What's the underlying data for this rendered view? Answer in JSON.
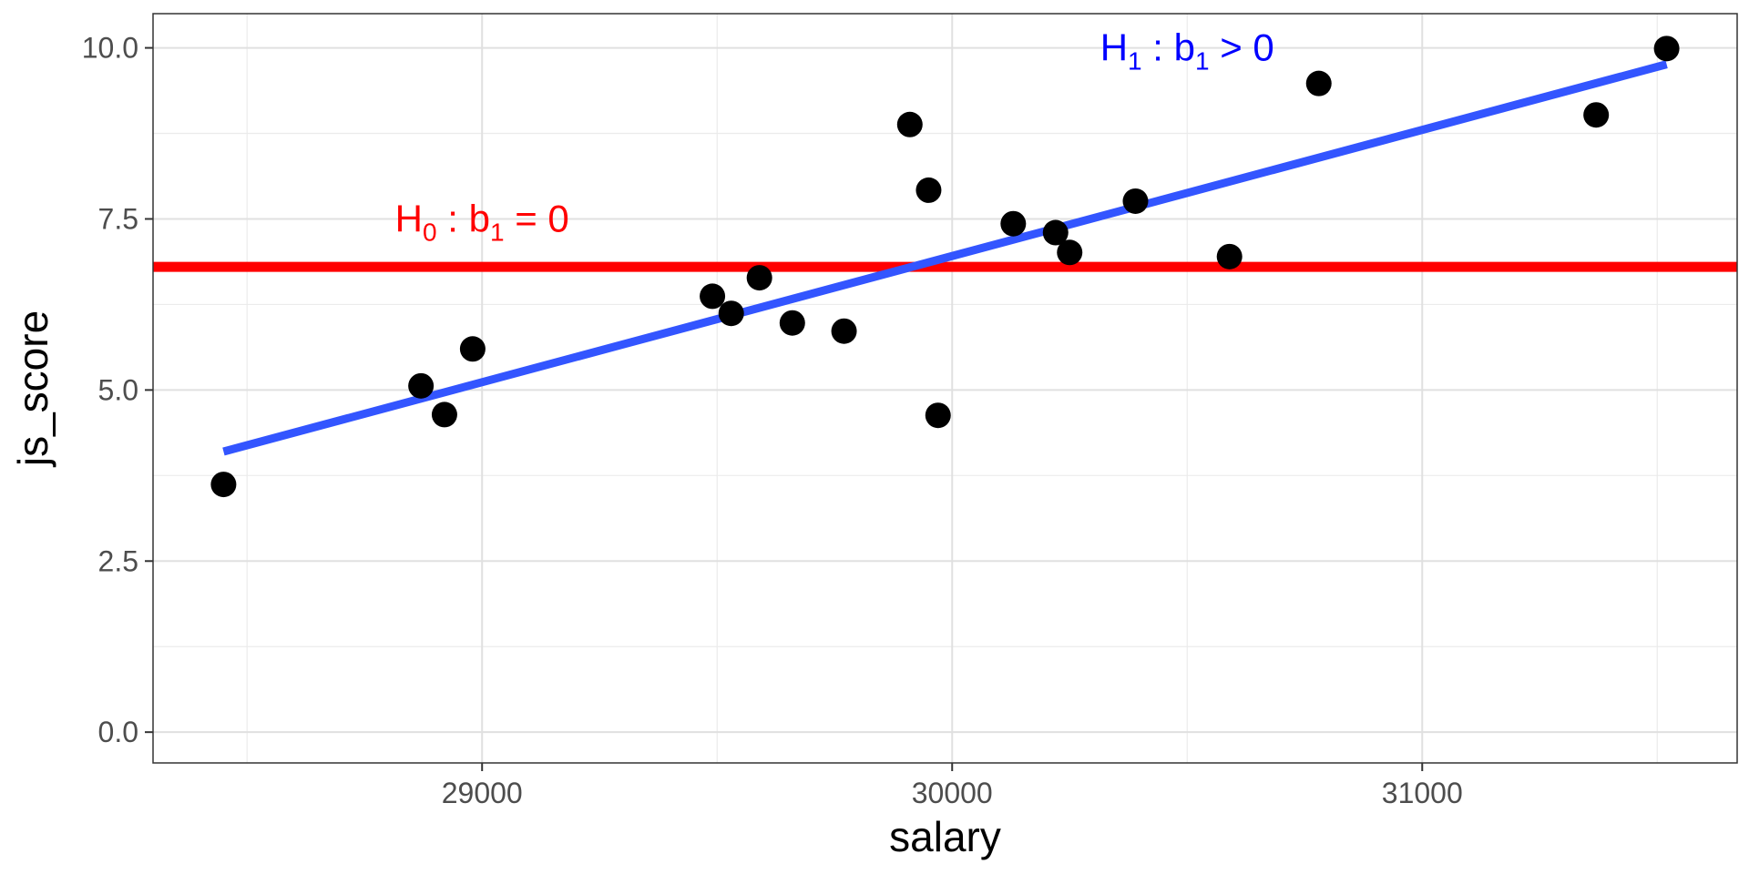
{
  "chart_data": {
    "type": "scatter",
    "title": "",
    "xlabel": "salary",
    "ylabel": "js_score",
    "xlim": [
      28300,
      31670
    ],
    "ylim": [
      -0.45,
      10.5
    ],
    "x_ticks": [
      29000,
      30000,
      31000
    ],
    "x_tick_labels": [
      "29000",
      "30000",
      "31000"
    ],
    "x_minor_ticks": [
      28500,
      29500,
      30500,
      31500
    ],
    "y_ticks": [
      0.0,
      2.5,
      5.0,
      7.5,
      10.0
    ],
    "y_tick_labels": [
      "0.0",
      "2.5",
      "5.0",
      "7.5",
      "10.0"
    ],
    "y_minor_ticks": [
      1.25,
      3.75,
      6.25,
      8.75
    ],
    "grid": true,
    "points": {
      "color": "#000000",
      "x": [
        28450,
        28870,
        28920,
        28980,
        29490,
        29530,
        29590,
        29660,
        29770,
        29910,
        29950,
        29970,
        30130,
        30220,
        30250,
        30390,
        30590,
        30780,
        31370,
        31520
      ],
      "y": [
        3.62,
        5.06,
        4.64,
        5.6,
        6.37,
        6.12,
        6.64,
        5.98,
        5.86,
        8.88,
        7.92,
        4.63,
        7.43,
        7.3,
        7.01,
        7.76,
        6.95,
        9.48,
        9.02,
        9.99
      ]
    },
    "lines": [
      {
        "kind": "horizontal",
        "y": 6.8,
        "color": "#ff0000"
      },
      {
        "kind": "fit",
        "x": [
          28450,
          31520
        ],
        "y": [
          4.1,
          9.76
        ],
        "color": "#3355ff"
      }
    ],
    "annotations": [
      {
        "id": "h0",
        "main": "H",
        "sub": "0",
        "rest": " : b",
        "sub2": "1",
        "tail": " = 0",
        "x": 29000,
        "y": 7.5,
        "color": "#ff0000"
      },
      {
        "id": "h1",
        "main": "H",
        "sub": "1",
        "rest": " : b",
        "sub2": "1",
        "tail": " > 0",
        "x": 30500,
        "y": 10.0,
        "color": "#0000ff"
      }
    ]
  }
}
